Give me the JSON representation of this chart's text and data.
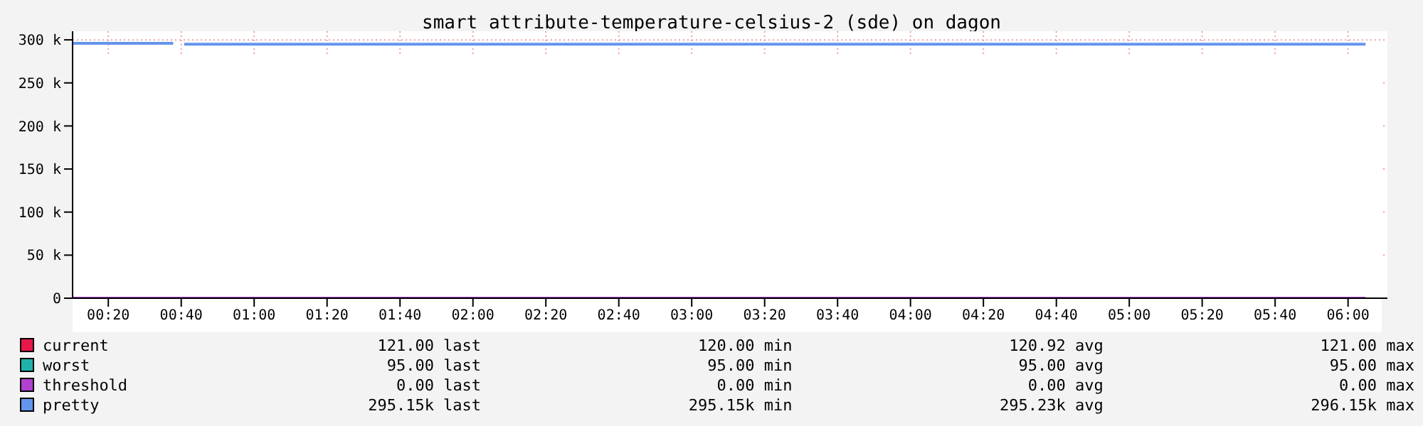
{
  "chart_data": {
    "type": "line",
    "title": "smart_attribute-temperature-celsius-2 (sde) on dagon",
    "xlim": [
      0.17,
      6.18
    ],
    "xticks": [
      {
        "value": 0.3333,
        "label": "00:20"
      },
      {
        "value": 0.6667,
        "label": "00:40"
      },
      {
        "value": 1,
        "label": "01:00"
      },
      {
        "value": 1.3333,
        "label": "01:20"
      },
      {
        "value": 1.6667,
        "label": "01:40"
      },
      {
        "value": 2,
        "label": "02:00"
      },
      {
        "value": 2.3333,
        "label": "02:20"
      },
      {
        "value": 2.6667,
        "label": "02:40"
      },
      {
        "value": 3,
        "label": "03:00"
      },
      {
        "value": 3.3333,
        "label": "03:20"
      },
      {
        "value": 3.6667,
        "label": "03:40"
      },
      {
        "value": 4,
        "label": "04:00"
      },
      {
        "value": 4.3333,
        "label": "04:20"
      },
      {
        "value": 4.6667,
        "label": "04:40"
      },
      {
        "value": 5,
        "label": "05:00"
      },
      {
        "value": 5.3333,
        "label": "05:20"
      },
      {
        "value": 5.6667,
        "label": "05:40"
      },
      {
        "value": 6,
        "label": "06:00"
      }
    ],
    "ylim": [
      0,
      310000
    ],
    "yticks": [
      {
        "value": 0,
        "label": "0"
      },
      {
        "value": 50000,
        "label": "50 k"
      },
      {
        "value": 100000,
        "label": "100 k"
      },
      {
        "value": 150000,
        "label": "150 k"
      },
      {
        "value": 200000,
        "label": "200 k"
      },
      {
        "value": 250000,
        "label": "250 k"
      },
      {
        "value": 300000,
        "label": "300 k"
      }
    ],
    "grid": true,
    "legend": "bottom",
    "marker": "none",
    "line_style": "solid",
    "series": [
      {
        "name": "current",
        "color": "#e8174a",
        "values": [
          null
        ]
      },
      {
        "name": "worst",
        "color": "#20b2aa",
        "values": [
          null
        ]
      },
      {
        "name": "threshold",
        "color": "#b040d0",
        "x": [
          0.17,
          6.08
        ],
        "values": [
          0,
          0
        ]
      },
      {
        "name": "pretty",
        "color": "#6495ed",
        "x": [
          0.17,
          0.63,
          0.65,
          0.68,
          6.08
        ],
        "values": [
          296000,
          296000,
          null,
          295000,
          295000
        ]
      }
    ],
    "annotations": [
      "121.00 last",
      "120.00 min",
      "120.92 avg",
      "121.00 max",
      "95.00 last",
      "95.00 min",
      "95.00 avg",
      "95.00 max",
      "0.00 last",
      "0.00 min",
      "0.00 avg",
      "0.00 max",
      "295.15k last",
      "295.15k min",
      "295.23k avg",
      "296.15k max"
    ]
  }
}
